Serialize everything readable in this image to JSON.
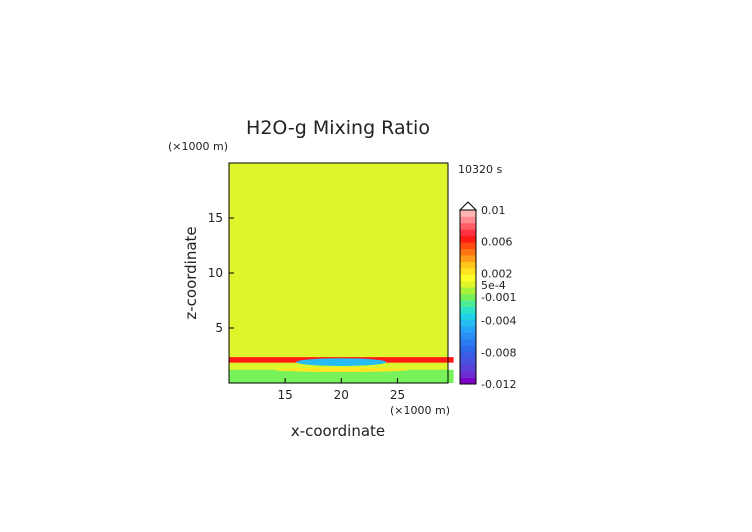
{
  "chart_data": {
    "type": "heatmap",
    "title": "H2O-g Mixing Ratio",
    "time_label": "10320 s",
    "xlabel": "x-coordinate",
    "ylabel": "z-coordinate",
    "x_unit_label": "(×1000 m)",
    "y_unit_label": "(×1000 m)",
    "xlim": [
      10,
      29.5
    ],
    "ylim": [
      0,
      20
    ],
    "x_ticks": [
      "15",
      "20",
      "25"
    ],
    "y_ticks": [
      "5",
      "10",
      "15"
    ],
    "x_tick_values": [
      15,
      20,
      25
    ],
    "y_tick_values": [
      5,
      10,
      15
    ],
    "background_value": 0.0005,
    "features": [
      {
        "name": "upper-band",
        "x_center": 20,
        "x_half_width": 10,
        "z_center": 2.1,
        "z_half_width": 0.25,
        "value": 0.006
      },
      {
        "name": "dry-core",
        "x_center": 20,
        "x_half_width": 4,
        "z_center": 1.9,
        "z_half_width": 0.35,
        "value": -0.004
      },
      {
        "name": "mid-band",
        "x_center": 20,
        "x_half_width": 6,
        "z_center": 1.2,
        "z_half_width": 0.2,
        "value": 0.002
      },
      {
        "name": "lower-layer",
        "x_center": 20,
        "x_half_width": 10,
        "z_center": 0.6,
        "z_half_width": 0.6,
        "value": -0.001
      }
    ],
    "colorbar": {
      "labels": [
        "0.01",
        "0.006",
        "0.002",
        "5e-4",
        "-0.001",
        "-0.004",
        "-0.008",
        "-0.012"
      ],
      "label_values": [
        0.01,
        0.006,
        0.002,
        0.0005,
        -0.001,
        -0.004,
        -0.008,
        -0.012
      ],
      "colors": [
        "#7a00c8",
        "#6e2cd0",
        "#5a3fd8",
        "#4a4fe0",
        "#3c5ce6",
        "#2f6aec",
        "#2a7cf0",
        "#2b8ef4",
        "#2aa4f6",
        "#24bcf2",
        "#1fd2e8",
        "#2ee2c8",
        "#4cec98",
        "#78f25a",
        "#a8f23c",
        "#ddf52a",
        "#ffff28",
        "#ffe522",
        "#ffc61c",
        "#ff9c18",
        "#ff7412",
        "#ff4a10",
        "#ff1a14",
        "#ff3040",
        "#ff5c66",
        "#ff8a90",
        "#ffb4b6"
      ]
    }
  }
}
